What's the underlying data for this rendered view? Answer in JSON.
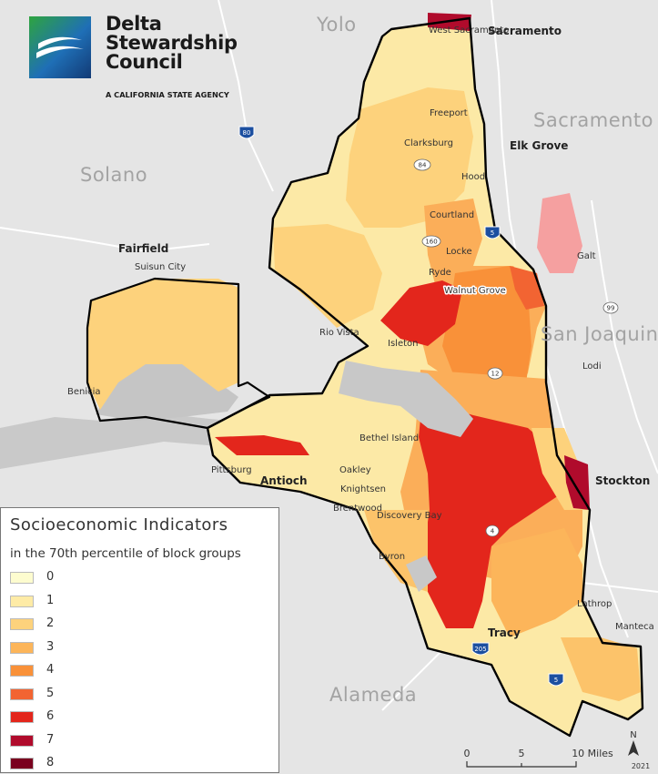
{
  "logo": {
    "line1": "Delta",
    "line2": "Stewardship",
    "line3": "Council",
    "subtitle": "A CALIFORNIA STATE AGENCY",
    "colors": [
      "#2ea43f",
      "#1f6fb6",
      "#123a75"
    ]
  },
  "counties": [
    "Yolo",
    "Sacramento",
    "Solano",
    "San Joaquin",
    "Alameda"
  ],
  "cities_major": [
    "Sacramento",
    "Elk Grove",
    "Fairfield",
    "Antioch",
    "Stockton",
    "Tracy"
  ],
  "places": {
    "west_sacramento": "West Sacramento",
    "freeport": "Freeport",
    "clarksburg": "Clarksburg",
    "hood": "Hood",
    "courtland": "Courtland",
    "locke": "Locke",
    "galt": "Galt",
    "suisun_city": "Suisun City",
    "ryde": "Ryde",
    "walnut_grove": "Walnut Grove",
    "rio_vista": "Rio Vista",
    "isleton": "Isleton",
    "lodi": "Lodi",
    "benicia": "Benicia",
    "bethel_island": "Bethel Island",
    "pittsburg": "Pittsburg",
    "oakley": "Oakley",
    "knightsen": "Knightsen",
    "brentwood": "Brentwood",
    "discovery_bay": "Discovery Bay",
    "byron": "Byron",
    "lathrop": "Lathrop",
    "manteca": "Manteca"
  },
  "highways": [
    "80",
    "84",
    "5",
    "160",
    "99",
    "12",
    "4",
    "205",
    "5"
  ],
  "legend": {
    "title": "Socioeconomic Indicators",
    "subtitle": "in the 70th percentile of block groups",
    "classes": [
      {
        "label": "0",
        "color": "#fdfccf"
      },
      {
        "label": "1",
        "color": "#feeba6"
      },
      {
        "label": "2",
        "color": "#fdd27c"
      },
      {
        "label": "3",
        "color": "#fcb55a"
      },
      {
        "label": "4",
        "color": "#f99139"
      },
      {
        "label": "5",
        "color": "#f26432"
      },
      {
        "label": "6",
        "color": "#e3261c"
      },
      {
        "label": "7",
        "color": "#b00b2c"
      },
      {
        "label": "8",
        "color": "#7a001f"
      }
    ]
  },
  "scale": {
    "ticks": [
      "0",
      "5",
      "10 Miles"
    ],
    "max_miles": 10
  },
  "north": {
    "letter": "N",
    "year": "2021"
  }
}
